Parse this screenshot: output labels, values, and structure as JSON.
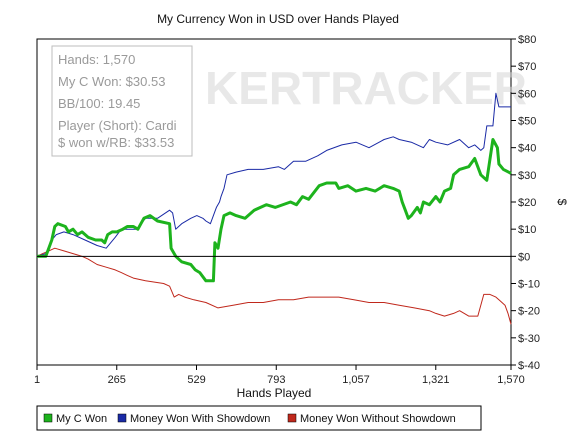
{
  "chart_data": {
    "type": "line",
    "title": "My Currency Won in USD over Hands Played",
    "xlabel": "Hands Played",
    "ylabel": "$",
    "xlim": [
      1,
      1570
    ],
    "ylim": [
      -40,
      80
    ],
    "x_ticks": [
      1,
      265,
      529,
      793,
      1057,
      1321,
      1570
    ],
    "x_tick_labels": [
      "1",
      "265",
      "529",
      "793",
      "1,057",
      "1,321",
      "1,570"
    ],
    "y_ticks": [
      80,
      70,
      60,
      50,
      40,
      30,
      20,
      10,
      0,
      -10,
      -20,
      -30,
      -40
    ],
    "y_tick_labels": [
      "$80",
      "$70",
      "$60",
      "$50",
      "$40",
      "$30",
      "$20",
      "$10",
      "$0",
      "$-10",
      "$-20",
      "$-30",
      "$-40"
    ],
    "watermark": "KERTRACKER",
    "info_box": [
      "Hands: 1,570",
      "My C Won: $30.53",
      "BB/100: 19.45",
      "Player (Short): Cardi",
      "$ won w/RB: $33.53"
    ],
    "series": [
      {
        "name": "My C Won",
        "color": "#1db31d",
        "points": [
          [
            1,
            0
          ],
          [
            30,
            0
          ],
          [
            50,
            6
          ],
          [
            60,
            11
          ],
          [
            70,
            12
          ],
          [
            95,
            11
          ],
          [
            105,
            9
          ],
          [
            120,
            10
          ],
          [
            135,
            8
          ],
          [
            150,
            9
          ],
          [
            170,
            7
          ],
          [
            195,
            6
          ],
          [
            215,
            6
          ],
          [
            225,
            5
          ],
          [
            235,
            8
          ],
          [
            250,
            9
          ],
          [
            265,
            9
          ],
          [
            285,
            10
          ],
          [
            300,
            11
          ],
          [
            320,
            11
          ],
          [
            335,
            10
          ],
          [
            345,
            12
          ],
          [
            355,
            14
          ],
          [
            375,
            15
          ],
          [
            400,
            13
          ],
          [
            440,
            12
          ],
          [
            445,
            3
          ],
          [
            460,
            0
          ],
          [
            480,
            -2
          ],
          [
            510,
            -3
          ],
          [
            525,
            -5
          ],
          [
            540,
            -6
          ],
          [
            560,
            -9
          ],
          [
            585,
            -9
          ],
          [
            590,
            5
          ],
          [
            600,
            3
          ],
          [
            610,
            10
          ],
          [
            620,
            15
          ],
          [
            640,
            16
          ],
          [
            660,
            15
          ],
          [
            690,
            14
          ],
          [
            720,
            17
          ],
          [
            760,
            19
          ],
          [
            790,
            18
          ],
          [
            840,
            20
          ],
          [
            860,
            19
          ],
          [
            880,
            22
          ],
          [
            900,
            21
          ],
          [
            935,
            26
          ],
          [
            960,
            27
          ],
          [
            990,
            27
          ],
          [
            1000,
            25
          ],
          [
            1030,
            26
          ],
          [
            1057,
            24
          ],
          [
            1090,
            25
          ],
          [
            1120,
            24
          ],
          [
            1150,
            26
          ],
          [
            1180,
            25
          ],
          [
            1200,
            24
          ],
          [
            1210,
            20
          ],
          [
            1220,
            17
          ],
          [
            1230,
            14
          ],
          [
            1240,
            15
          ],
          [
            1260,
            18
          ],
          [
            1270,
            16
          ],
          [
            1280,
            20
          ],
          [
            1300,
            19
          ],
          [
            1321,
            22
          ],
          [
            1335,
            20
          ],
          [
            1350,
            24
          ],
          [
            1370,
            25
          ],
          [
            1380,
            30
          ],
          [
            1400,
            32
          ],
          [
            1430,
            33
          ],
          [
            1450,
            36
          ],
          [
            1470,
            30
          ],
          [
            1490,
            28
          ],
          [
            1510,
            43
          ],
          [
            1525,
            40
          ],
          [
            1530,
            34
          ],
          [
            1545,
            32
          ],
          [
            1570,
            30.53
          ]
        ]
      },
      {
        "name": "Money Won With Showdown",
        "color": "#1a2aa6",
        "points": [
          [
            1,
            0
          ],
          [
            30,
            1
          ],
          [
            50,
            6
          ],
          [
            65,
            8
          ],
          [
            90,
            9
          ],
          [
            120,
            8
          ],
          [
            160,
            6
          ],
          [
            200,
            4
          ],
          [
            230,
            3
          ],
          [
            260,
            7
          ],
          [
            280,
            10
          ],
          [
            330,
            10
          ],
          [
            360,
            14
          ],
          [
            400,
            14
          ],
          [
            440,
            17
          ],
          [
            450,
            16
          ],
          [
            460,
            10
          ],
          [
            480,
            12
          ],
          [
            510,
            14
          ],
          [
            530,
            15
          ],
          [
            550,
            14
          ],
          [
            560,
            13
          ],
          [
            575,
            12
          ],
          [
            585,
            15
          ],
          [
            595,
            18
          ],
          [
            605,
            20
          ],
          [
            610,
            22
          ],
          [
            620,
            25
          ],
          [
            630,
            30
          ],
          [
            660,
            31
          ],
          [
            700,
            32
          ],
          [
            750,
            32
          ],
          [
            800,
            33
          ],
          [
            820,
            32
          ],
          [
            850,
            35
          ],
          [
            890,
            35
          ],
          [
            930,
            37
          ],
          [
            960,
            39
          ],
          [
            1010,
            41
          ],
          [
            1057,
            42
          ],
          [
            1100,
            40
          ],
          [
            1150,
            43
          ],
          [
            1180,
            44
          ],
          [
            1200,
            43
          ],
          [
            1240,
            42
          ],
          [
            1280,
            40
          ],
          [
            1300,
            43
          ],
          [
            1321,
            42
          ],
          [
            1360,
            41
          ],
          [
            1400,
            43
          ],
          [
            1430,
            40
          ],
          [
            1450,
            41
          ],
          [
            1470,
            39
          ],
          [
            1480,
            40
          ],
          [
            1490,
            48
          ],
          [
            1510,
            48
          ],
          [
            1520,
            60
          ],
          [
            1530,
            55
          ],
          [
            1550,
            55
          ],
          [
            1570,
            55
          ]
        ]
      },
      {
        "name": "Money Won Without Showdown",
        "color": "#c0281c",
        "points": [
          [
            1,
            0
          ],
          [
            20,
            1
          ],
          [
            40,
            2
          ],
          [
            60,
            3
          ],
          [
            90,
            2
          ],
          [
            120,
            1
          ],
          [
            150,
            0
          ],
          [
            170,
            -1
          ],
          [
            200,
            -3
          ],
          [
            230,
            -4
          ],
          [
            260,
            -5
          ],
          [
            280,
            -6
          ],
          [
            300,
            -7
          ],
          [
            320,
            -8
          ],
          [
            360,
            -9
          ],
          [
            420,
            -10
          ],
          [
            440,
            -11
          ],
          [
            455,
            -15
          ],
          [
            470,
            -14
          ],
          [
            490,
            -15
          ],
          [
            520,
            -16
          ],
          [
            560,
            -17
          ],
          [
            600,
            -19
          ],
          [
            650,
            -18
          ],
          [
            700,
            -17
          ],
          [
            750,
            -17
          ],
          [
            800,
            -16
          ],
          [
            850,
            -16
          ],
          [
            900,
            -15
          ],
          [
            950,
            -15
          ],
          [
            1000,
            -15
          ],
          [
            1050,
            -16
          ],
          [
            1100,
            -17
          ],
          [
            1150,
            -17
          ],
          [
            1200,
            -18
          ],
          [
            1250,
            -19
          ],
          [
            1300,
            -20
          ],
          [
            1321,
            -21
          ],
          [
            1350,
            -22
          ],
          [
            1380,
            -21
          ],
          [
            1400,
            -20
          ],
          [
            1430,
            -22
          ],
          [
            1460,
            -22
          ],
          [
            1480,
            -14
          ],
          [
            1500,
            -14
          ],
          [
            1520,
            -15
          ],
          [
            1530,
            -16
          ],
          [
            1550,
            -18
          ],
          [
            1560,
            -21
          ],
          [
            1570,
            -25
          ]
        ]
      }
    ]
  }
}
